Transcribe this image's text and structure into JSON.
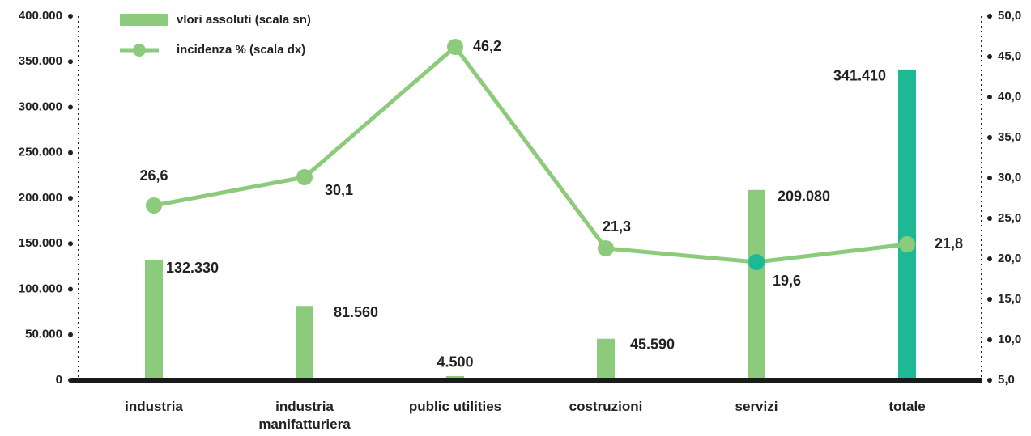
{
  "chart_data": {
    "type": "bar+line",
    "categories": [
      "industria",
      "industria manifatturiera",
      "public utilities",
      "costruzioni",
      "servizi",
      "totale"
    ],
    "series": [
      {
        "name": "vlori assoluti (scala sn)",
        "type": "bar",
        "color": "#8dcb7c",
        "colors": [
          "#8dcb7c",
          "#8dcb7c",
          "#8dcb7c",
          "#8dcb7c",
          "#8dcb7c",
          "#1db995"
        ],
        "values": [
          132330,
          81560,
          4500,
          45590,
          209080,
          341410
        ],
        "value_labels": [
          "132.330",
          "81.560",
          "4.500",
          "45.590",
          "209.080",
          "341.410"
        ]
      },
      {
        "name": "incidenza % (scala dx)",
        "type": "line",
        "axis": "y2",
        "color": "#8dcb7c",
        "marker_colors": [
          "#8dcb7c",
          "#8dcb7c",
          "#8dcb7c",
          "#8dcb7c",
          "#1db995",
          "#8dcb7c"
        ],
        "values": [
          26.6,
          30.1,
          46.2,
          21.3,
          19.6,
          21.8
        ],
        "value_labels": [
          "26,6",
          "30,1",
          "46,2",
          "21,3",
          "19,6",
          "21,8"
        ]
      }
    ],
    "ylim": [
      0,
      400000
    ],
    "yticks": [
      0,
      {
        "value": 50000,
        "label": "50.000"
      },
      {
        "value": 100000,
        "label": "100.000"
      },
      {
        "value": 150000,
        "label": "150.000"
      },
      {
        "value": 200000,
        "label": "200.000"
      },
      {
        "value": 250000,
        "label": "250.000"
      },
      {
        "value": 300000,
        "label": "300.000"
      },
      {
        "value": 350000,
        "label": "350.000"
      },
      {
        "value": 400000,
        "label": "400.000"
      }
    ],
    "y2lim": [
      5,
      50
    ],
    "y2ticks": [
      {
        "value": 5,
        "label": "5,0"
      },
      {
        "value": 10,
        "label": "10,0"
      },
      {
        "value": 15,
        "label": "15,0"
      },
      {
        "value": 20,
        "label": "20,0"
      },
      {
        "value": 25,
        "label": "25,0"
      },
      {
        "value": 30,
        "label": "30,0"
      },
      {
        "value": 35,
        "label": "35,0"
      },
      {
        "value": 40,
        "label": "40,0"
      },
      {
        "value": 45,
        "label": "45,0"
      },
      {
        "value": 50,
        "label": "50,0"
      }
    ],
    "legend": "upper left"
  }
}
